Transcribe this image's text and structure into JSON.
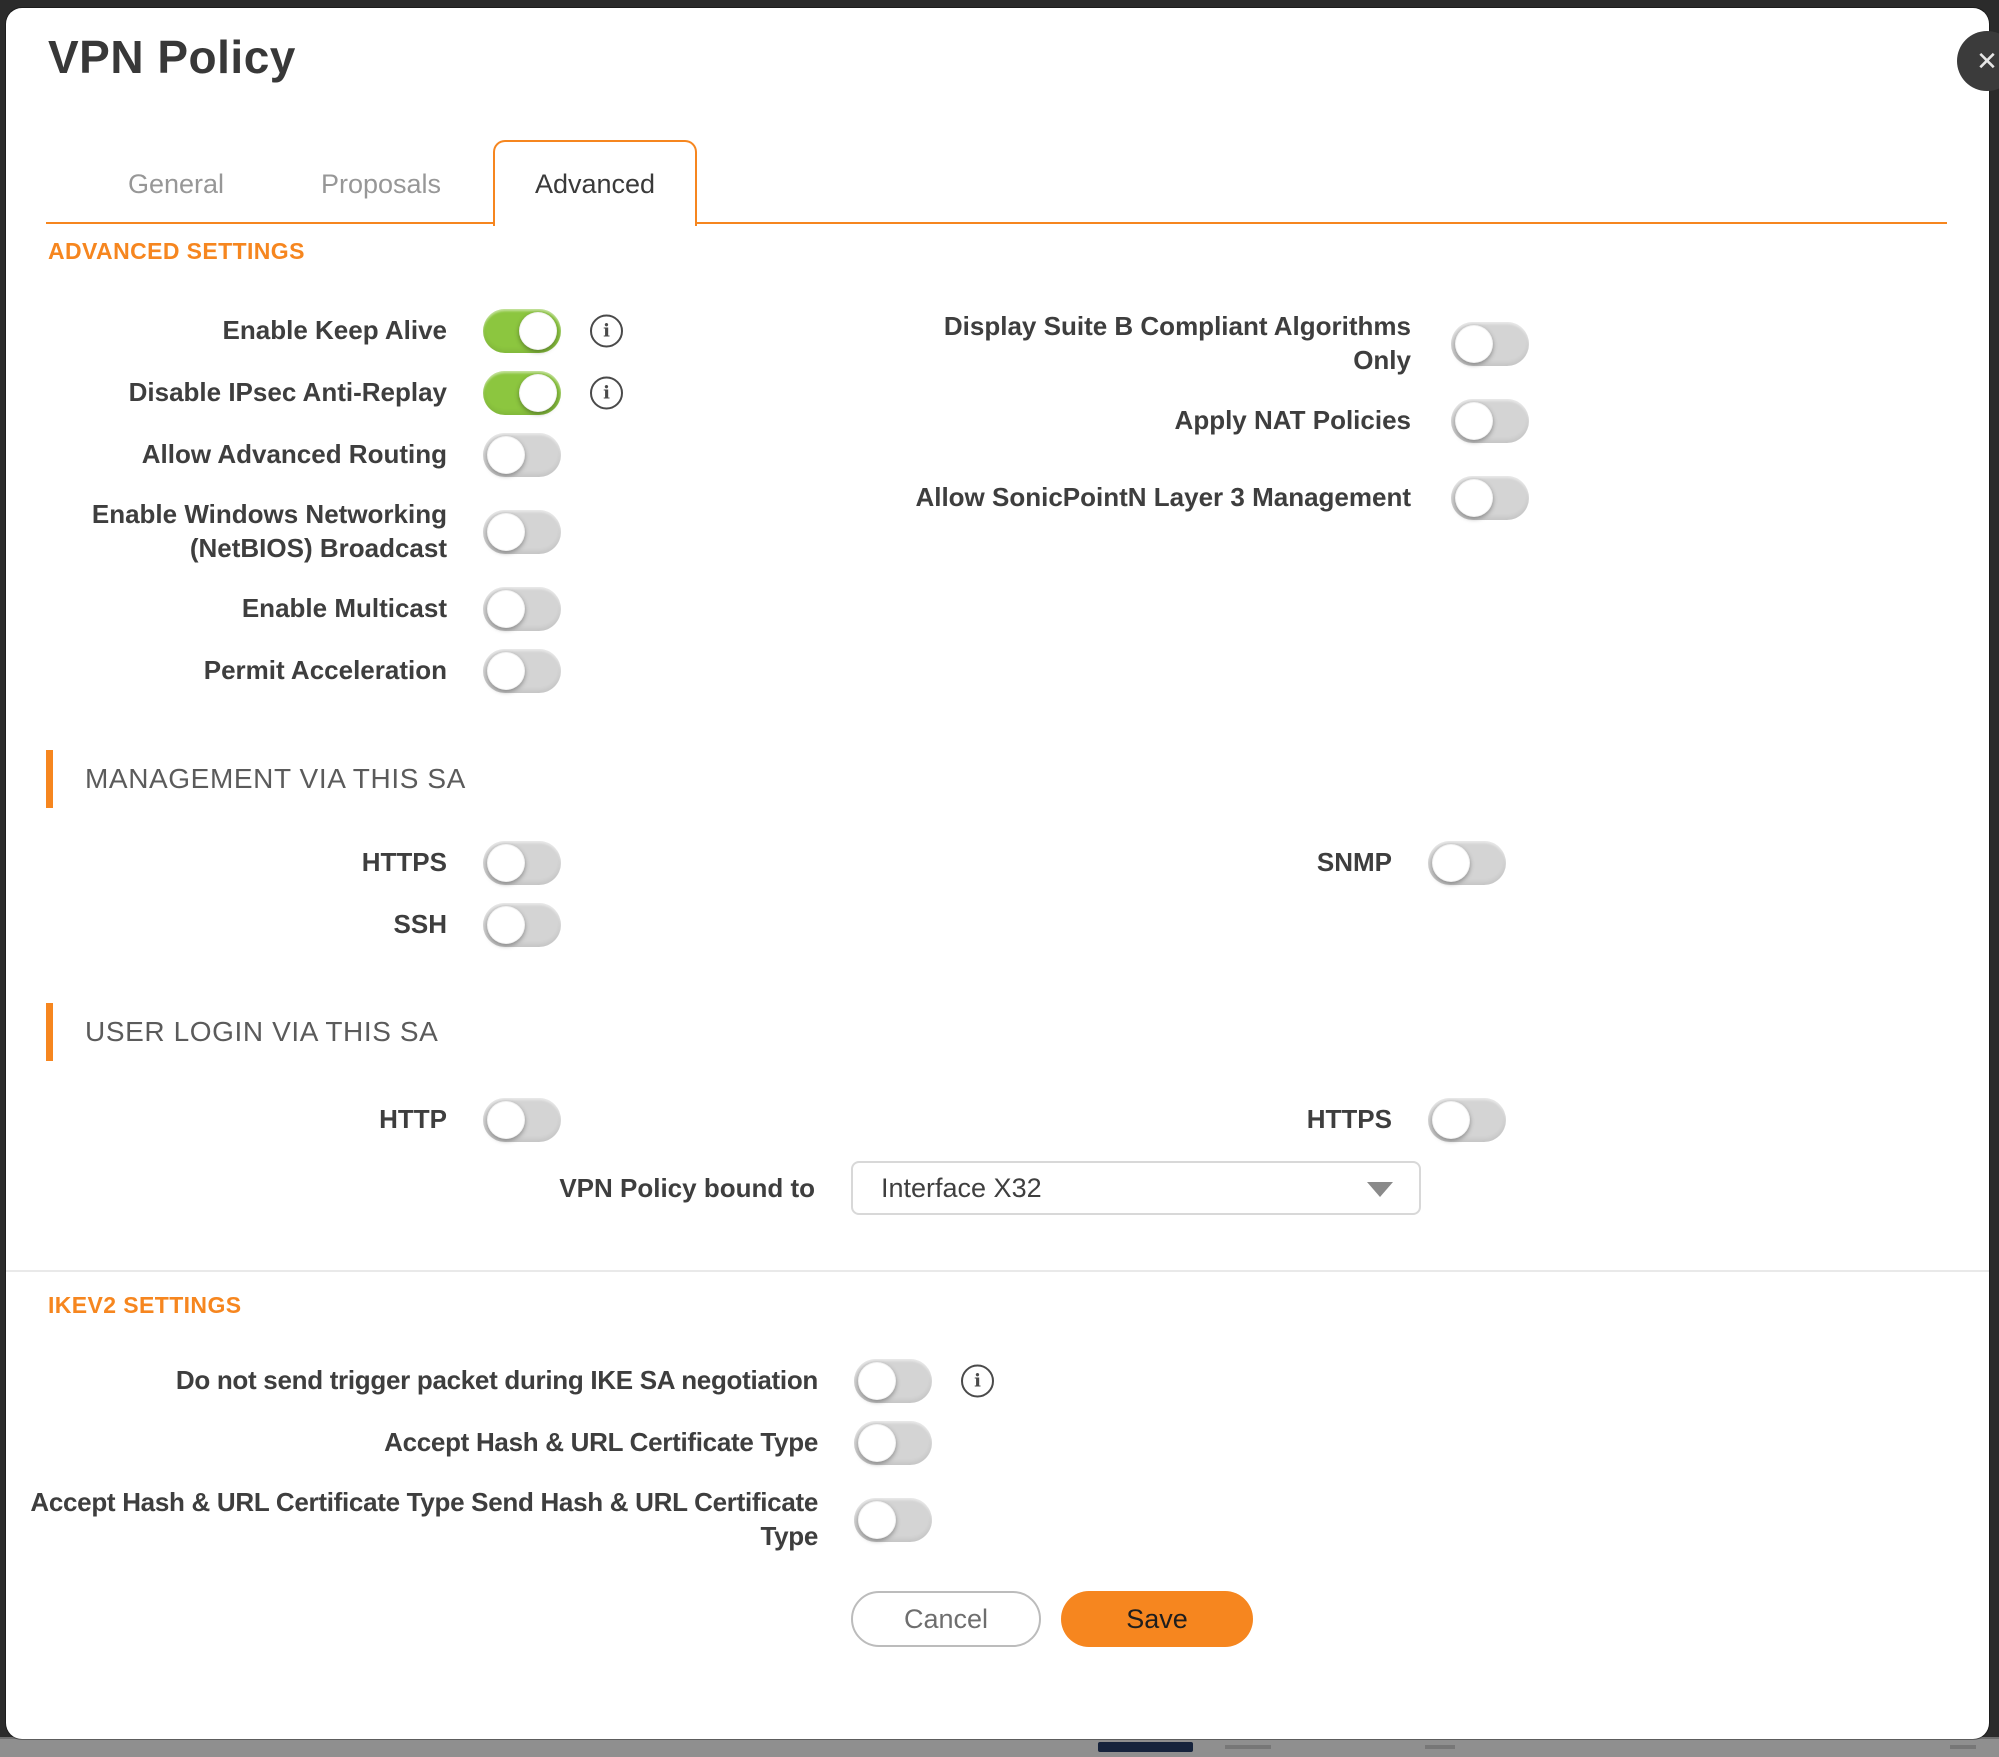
{
  "dialog": {
    "title": "VPN Policy",
    "close_icon": "✕"
  },
  "tabs": {
    "general": "General",
    "proposals": "Proposals",
    "advanced": "Advanced"
  },
  "advanced_settings": {
    "heading": "ADVANCED SETTINGS",
    "left_rows": [
      {
        "label": "Enable Keep Alive",
        "on": true,
        "info": true
      },
      {
        "label": "Disable IPsec Anti-Replay",
        "on": true,
        "info": true
      },
      {
        "label": "Allow Advanced Routing",
        "on": false
      },
      {
        "label": "Enable Windows Networking (NetBIOS) Broadcast",
        "on": false
      },
      {
        "label": "Enable Multicast",
        "on": false
      },
      {
        "label": "Permit Acceleration",
        "on": false
      }
    ],
    "right_rows": [
      {
        "label": "Display Suite B Compliant Algorithms Only",
        "on": false
      },
      {
        "label": "Apply NAT Policies",
        "on": false
      },
      {
        "label": "Allow SonicPointN Layer 3 Management",
        "on": false
      }
    ]
  },
  "management": {
    "heading": "MANAGEMENT VIA THIS SA",
    "left_rows": [
      {
        "label": "HTTPS",
        "on": false
      },
      {
        "label": "SSH",
        "on": false
      }
    ],
    "right_rows": [
      {
        "label": "SNMP",
        "on": false
      }
    ]
  },
  "user_login": {
    "heading": "USER LOGIN VIA THIS SA",
    "left_rows": [
      {
        "label": "HTTP",
        "on": false
      }
    ],
    "right_rows": [
      {
        "label": "HTTPS",
        "on": false
      }
    ],
    "bound": {
      "label": "VPN Policy bound to",
      "value": "Interface X32"
    }
  },
  "ikev2": {
    "heading": "IKEV2 SETTINGS",
    "rows": [
      {
        "label": "Do not send trigger packet during IKE SA negotiation",
        "on": false,
        "info": true
      },
      {
        "label": "Accept Hash & URL Certificate Type",
        "on": false
      },
      {
        "label": "Accept Hash & URL Certificate Type Send Hash & URL Certificate Type",
        "on": false
      }
    ]
  },
  "footer": {
    "cancel": "Cancel",
    "save": "Save"
  },
  "colors": {
    "accent": "#F6861F",
    "toggle_on": "#8CC63F",
    "close_bg": "#3b3b3b"
  }
}
